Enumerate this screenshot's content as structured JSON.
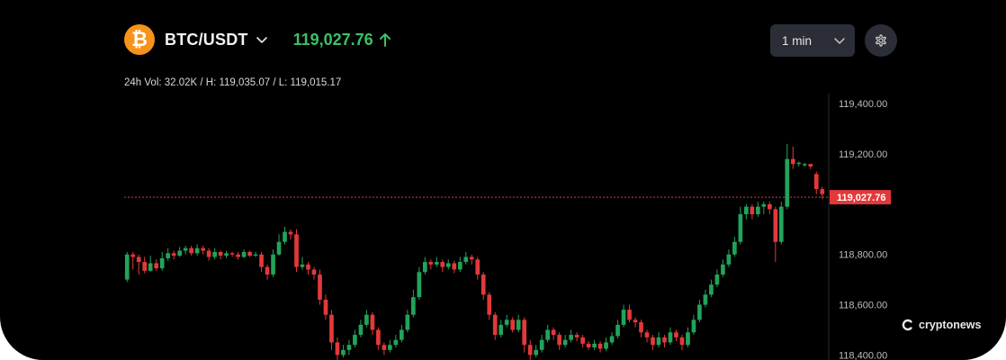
{
  "header": {
    "coin_symbol": "₿",
    "pair": "BTC/USDT",
    "price": "119,027.76",
    "coin_color": "#F7931A",
    "price_color": "#3cc168"
  },
  "stats": {
    "text": "24h Vol: 32.02K / H: 119,035.07 / L: 119,015.17"
  },
  "controls": {
    "interval": "1 min"
  },
  "watermark": {
    "text": "cryptonews"
  },
  "chart_data": {
    "type": "candlestick",
    "y_ticks": [
      "119,400.00",
      "119,200.00",
      "118,800.00",
      "118,600.00",
      "118,400.00"
    ],
    "y_tick_values": [
      119400,
      119200,
      118800,
      118600,
      118400
    ],
    "ylim": [
      118380,
      119440
    ],
    "last_price": 119027.76,
    "last_price_label": "119,027.76",
    "up_color": "#23a35a",
    "down_color": "#e3393a",
    "grid": false,
    "candles": [
      [
        118700,
        118800,
        118810,
        118690
      ],
      [
        118800,
        118790,
        118810,
        118740
      ],
      [
        118790,
        118770,
        118800,
        118720
      ],
      [
        118770,
        118735,
        118790,
        118725
      ],
      [
        118735,
        118765,
        118795,
        118730
      ],
      [
        118765,
        118745,
        118780,
        118735
      ],
      [
        118745,
        118785,
        118810,
        118735
      ],
      [
        118785,
        118805,
        118825,
        118775
      ],
      [
        118805,
        118795,
        118815,
        118780
      ],
      [
        118795,
        118815,
        118830,
        118790
      ],
      [
        118815,
        118825,
        118835,
        118800
      ],
      [
        118825,
        118805,
        118835,
        118795
      ],
      [
        118805,
        118825,
        118840,
        118795
      ],
      [
        118825,
        118815,
        118835,
        118800
      ],
      [
        118815,
        118790,
        118825,
        118775
      ],
      [
        118790,
        118810,
        118825,
        118780
      ],
      [
        118810,
        118795,
        118815,
        118780
      ],
      [
        118795,
        118805,
        118815,
        118785
      ],
      [
        118805,
        118800,
        118810,
        118790
      ],
      [
        118800,
        118790,
        118810,
        118780
      ],
      [
        118790,
        118810,
        118820,
        118785
      ],
      [
        118810,
        118795,
        118815,
        118790
      ],
      [
        118795,
        118800,
        118810,
        118790
      ],
      [
        118800,
        118750,
        118810,
        118730
      ],
      [
        118750,
        118720,
        118760,
        118700
      ],
      [
        118720,
        118800,
        118820,
        118710
      ],
      [
        118800,
        118850,
        118880,
        118795
      ],
      [
        118850,
        118890,
        118910,
        118840
      ],
      [
        118890,
        118880,
        118900,
        118860
      ],
      [
        118880,
        118750,
        118900,
        118730
      ],
      [
        118750,
        118760,
        118790,
        118740
      ],
      [
        118760,
        118740,
        118770,
        118720
      ],
      [
        118740,
        118720,
        118750,
        118700
      ],
      [
        118720,
        118620,
        118740,
        118600
      ],
      [
        118620,
        118560,
        118640,
        118540
      ],
      [
        118560,
        118450,
        118580,
        118420
      ],
      [
        118450,
        118400,
        118470,
        118380
      ],
      [
        118400,
        118420,
        118440,
        118390
      ],
      [
        118420,
        118440,
        118460,
        118400
      ],
      [
        118440,
        118480,
        118500,
        118430
      ],
      [
        118480,
        118520,
        118540,
        118470
      ],
      [
        118520,
        118560,
        118580,
        118510
      ],
      [
        118560,
        118500,
        118570,
        118480
      ],
      [
        118500,
        118440,
        118510,
        118420
      ],
      [
        118440,
        118420,
        118450,
        118400
      ],
      [
        118420,
        118440,
        118460,
        118410
      ],
      [
        118440,
        118460,
        118480,
        118430
      ],
      [
        118460,
        118500,
        118520,
        118450
      ],
      [
        118500,
        118560,
        118580,
        118490
      ],
      [
        118560,
        118630,
        118660,
        118550
      ],
      [
        118630,
        118730,
        118750,
        118620
      ],
      [
        118730,
        118770,
        118790,
        118720
      ],
      [
        118770,
        118760,
        118780,
        118740
      ],
      [
        118760,
        118770,
        118790,
        118750
      ],
      [
        118770,
        118750,
        118780,
        118730
      ],
      [
        118750,
        118765,
        118780,
        118740
      ],
      [
        118765,
        118740,
        118775,
        118725
      ],
      [
        118740,
        118770,
        118790,
        118730
      ],
      [
        118770,
        118790,
        118810,
        118760
      ],
      [
        118790,
        118780,
        118800,
        118760
      ],
      [
        118780,
        118720,
        118790,
        118700
      ],
      [
        118720,
        118640,
        118730,
        118620
      ],
      [
        118640,
        118560,
        118650,
        118540
      ],
      [
        118560,
        118480,
        118570,
        118460
      ],
      [
        118480,
        118520,
        118540,
        118470
      ],
      [
        118520,
        118540,
        118560,
        118510
      ],
      [
        118540,
        118500,
        118550,
        118490
      ],
      [
        118500,
        118540,
        118560,
        118490
      ],
      [
        118540,
        118440,
        118550,
        118410
      ],
      [
        118440,
        118400,
        118460,
        118380
      ],
      [
        118400,
        118420,
        118440,
        118390
      ],
      [
        118420,
        118460,
        118480,
        118410
      ],
      [
        118460,
        118500,
        118520,
        118450
      ],
      [
        118500,
        118480,
        118510,
        118460
      ],
      [
        118480,
        118440,
        118490,
        118420
      ],
      [
        118440,
        118460,
        118480,
        118430
      ],
      [
        118460,
        118480,
        118500,
        118450
      ],
      [
        118480,
        118470,
        118490,
        118455
      ],
      [
        118470,
        118445,
        118480,
        118430
      ],
      [
        118445,
        118430,
        118455,
        118420
      ],
      [
        118430,
        118445,
        118460,
        118420
      ],
      [
        118445,
        118425,
        118455,
        118410
      ],
      [
        118425,
        118450,
        118470,
        118415
      ],
      [
        118450,
        118475,
        118490,
        118440
      ],
      [
        118475,
        118520,
        118540,
        118465
      ],
      [
        118520,
        118580,
        118600,
        118510
      ],
      [
        118580,
        118540,
        118600,
        118530
      ],
      [
        118540,
        118530,
        118550,
        118510
      ],
      [
        118530,
        118490,
        118540,
        118470
      ],
      [
        118490,
        118470,
        118500,
        118450
      ],
      [
        118470,
        118440,
        118480,
        118420
      ],
      [
        118440,
        118470,
        118490,
        118430
      ],
      [
        118470,
        118450,
        118480,
        118430
      ],
      [
        118450,
        118490,
        118510,
        118440
      ],
      [
        118490,
        118470,
        118500,
        118455
      ],
      [
        118470,
        118440,
        118480,
        118420
      ],
      [
        118440,
        118490,
        118510,
        118430
      ],
      [
        118490,
        118540,
        118560,
        118480
      ],
      [
        118540,
        118600,
        118620,
        118530
      ],
      [
        118600,
        118640,
        118660,
        118590
      ],
      [
        118640,
        118680,
        118700,
        118630
      ],
      [
        118680,
        118720,
        118740,
        118670
      ],
      [
        118720,
        118760,
        118780,
        118710
      ],
      [
        118760,
        118800,
        118820,
        118750
      ],
      [
        118800,
        118850,
        118870,
        118790
      ],
      [
        118850,
        118960,
        118990,
        118840
      ],
      [
        118960,
        118990,
        119000,
        118940
      ],
      [
        118990,
        118960,
        119000,
        118940
      ],
      [
        118960,
        118990,
        119010,
        118950
      ],
      [
        118990,
        119000,
        119010,
        118960
      ],
      [
        119000,
        118980,
        119010,
        118960
      ],
      [
        118980,
        118850,
        118990,
        118770
      ],
      [
        118850,
        118990,
        119010,
        118840
      ],
      [
        118990,
        119180,
        119240,
        118980
      ],
      [
        119180,
        119160,
        119230,
        119140
      ],
      [
        119160,
        119165,
        119170,
        119150
      ],
      [
        119155,
        119160,
        119165,
        119150
      ],
      [
        119160,
        119150,
        119160,
        119140
      ],
      [
        119120,
        119060,
        119130,
        119040
      ],
      [
        119060,
        119040,
        119070,
        119020
      ]
    ]
  }
}
